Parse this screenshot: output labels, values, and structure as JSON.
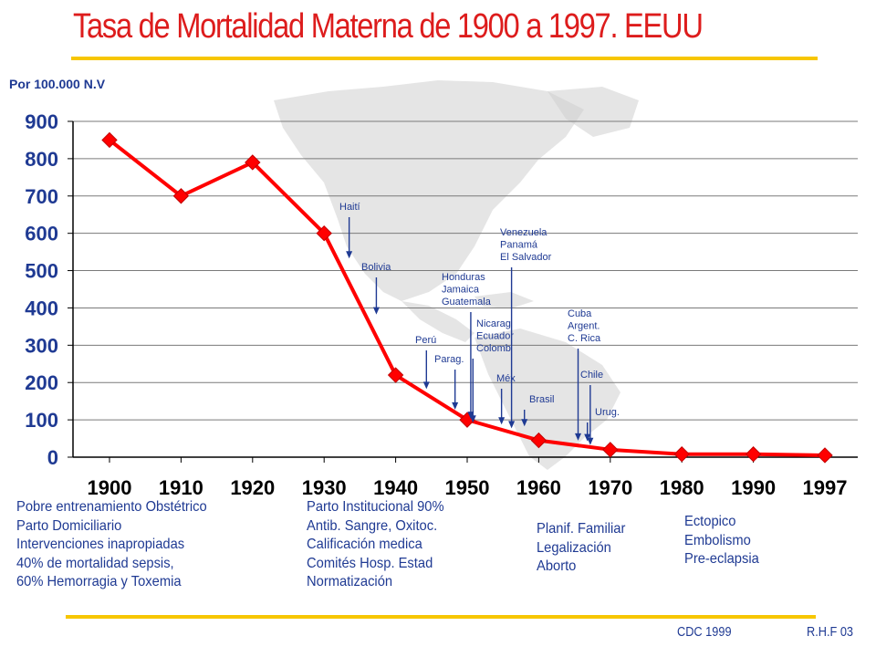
{
  "title": "Tasa de Mortalidad Materna de 1900 a 1997. EEUU",
  "unit_label": "Por 100.000 N.V",
  "colors": {
    "title": "#dd1c1c",
    "series": "#ff0000",
    "accent_bar": "#f7c600",
    "text": "#1f3a93",
    "map": "#cfcfcf"
  },
  "chart_data": {
    "type": "line",
    "title": "Tasa de Mortalidad Materna de 1900 a 1997. EEUU",
    "ylabel": "Por 100.000 N.V",
    "xlabel": "",
    "ylim": [
      0,
      900
    ],
    "yticks": [
      "0",
      "100",
      "200",
      "300",
      "400",
      "500",
      "600",
      "700",
      "800",
      "900"
    ],
    "xticks": [
      "1900",
      "1910",
      "1920",
      "1930",
      "1940",
      "1950",
      "1960",
      "1970",
      "1980",
      "1990",
      "1997"
    ],
    "grid": true,
    "points": [
      {
        "x": "1900",
        "y": 850
      },
      {
        "x": "1910",
        "y": 700
      },
      {
        "x": "1920",
        "y": 790
      },
      {
        "x": "1930",
        "y": 600
      },
      {
        "x": "1940",
        "y": 220
      },
      {
        "x": "1950",
        "y": 100
      },
      {
        "x": "1960",
        "y": 45
      },
      {
        "x": "1970",
        "y": 20
      },
      {
        "x": "1980",
        "y": 8
      },
      {
        "x": "1990",
        "y": 8
      },
      {
        "x": "1997",
        "y": 5
      }
    ],
    "annotations": [
      {
        "lines": [
          "Haití"
        ],
        "x": 1933.5,
        "y": 530
      },
      {
        "lines": [
          "Bolivia"
        ],
        "x": 1937.3,
        "y": 380
      },
      {
        "lines": [
          "Perú"
        ],
        "x": 1944.3,
        "y": 180
      },
      {
        "lines": [
          "Parag."
        ],
        "x": 1948.3,
        "y": 125
      },
      {
        "lines": [
          "Honduras",
          "Jamaica",
          "Guatemala"
        ],
        "x": 1950.5,
        "y": 100
      },
      {
        "lines": [
          "Nicarag",
          "Ecuador",
          "Colomb"
        ],
        "x": 1950.8,
        "y": 90
      },
      {
        "lines": [
          "Méx"
        ],
        "x": 1954.8,
        "y": 85
      },
      {
        "lines": [
          "Venezuela",
          "Panamá",
          "El Salvador"
        ],
        "x": 1956.2,
        "y": 75
      },
      {
        "lines": [
          "Brasil"
        ],
        "x": 1958.0,
        "y": 80
      },
      {
        "lines": [
          "Cuba",
          "Argent.",
          "C. Rica"
        ],
        "x": 1965.5,
        "y": 42
      },
      {
        "lines": [
          "Chile"
        ],
        "x": 1967.2,
        "y": 30
      },
      {
        "lines": [
          "Urug."
        ],
        "x": 1966.8,
        "y": 40
      }
    ]
  },
  "causes": [
    {
      "lines": [
        "Pobre entrenamiento Obstétrico",
        "Parto Domiciliario",
        "Intervenciones inapropiadas",
        "40% de mortalidad sepsis,",
        "60% Hemorragia y Toxemia"
      ]
    },
    {
      "lines": [
        "Parto Institucional 90%",
        "Antib. Sangre, Oxitoc.",
        "Calificación medica",
        "Comités Hosp. Estad",
        "Normatización"
      ]
    },
    {
      "lines": [
        "Planif. Familiar",
        "Legalización",
        "Aborto"
      ]
    },
    {
      "lines": [
        "Ectopico",
        "Embolismo",
        "Pre-eclapsia"
      ]
    }
  ],
  "footer": {
    "source": "CDC 1999",
    "author": "R.H.F 03"
  }
}
